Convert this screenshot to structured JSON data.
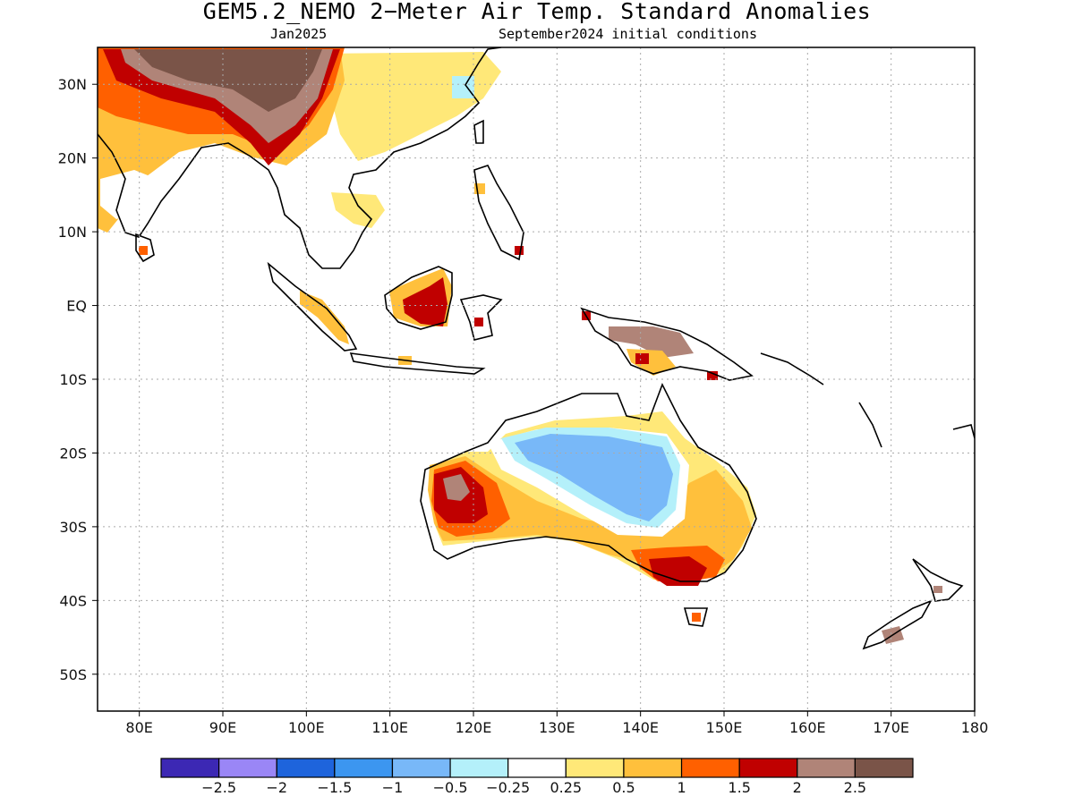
{
  "title": "GEM5.2_NEMO 2−Meter Air Temp. Standard Anomalies",
  "subtitle_left": "Jan2025",
  "subtitle_right": "September2024 initial conditions",
  "map": {
    "lon_range": [
      75,
      180
    ],
    "lat_range": [
      -55,
      35
    ],
    "lat_ticks": [
      {
        "value": 30,
        "label": "30N"
      },
      {
        "value": 20,
        "label": "20N"
      },
      {
        "value": 10,
        "label": "10N"
      },
      {
        "value": 0,
        "label": "EQ"
      },
      {
        "value": -10,
        "label": "10S"
      },
      {
        "value": -20,
        "label": "20S"
      },
      {
        "value": -30,
        "label": "30S"
      },
      {
        "value": -40,
        "label": "40S"
      },
      {
        "value": -50,
        "label": "50S"
      }
    ],
    "lon_ticks": [
      {
        "value": 80,
        "label": "80E"
      },
      {
        "value": 90,
        "label": "90E"
      },
      {
        "value": 100,
        "label": "100E"
      },
      {
        "value": 110,
        "label": "110E"
      },
      {
        "value": 120,
        "label": "120E"
      },
      {
        "value": 130,
        "label": "130E"
      },
      {
        "value": 140,
        "label": "140E"
      },
      {
        "value": 150,
        "label": "150E"
      },
      {
        "value": 160,
        "label": "160E"
      },
      {
        "value": 170,
        "label": "170E"
      },
      {
        "value": 180,
        "label": "180"
      }
    ],
    "grid": "dotted"
  },
  "colorbar": {
    "colors": [
      "#3c28b4",
      "#9a86f6",
      "#1e64dc",
      "#3c96f0",
      "#78b8f8",
      "#b4f0fa",
      "#ffffff",
      "#ffe878",
      "#ffc03c",
      "#ff6000",
      "#c00000",
      "#b08478",
      "#7a5448"
    ],
    "labels": [
      "−2.5",
      "−2",
      "−1.5",
      "−1",
      "−0.5",
      "−0.25",
      "0.25",
      "0.5",
      "1",
      "1.5",
      "2",
      "2.5"
    ]
  }
}
